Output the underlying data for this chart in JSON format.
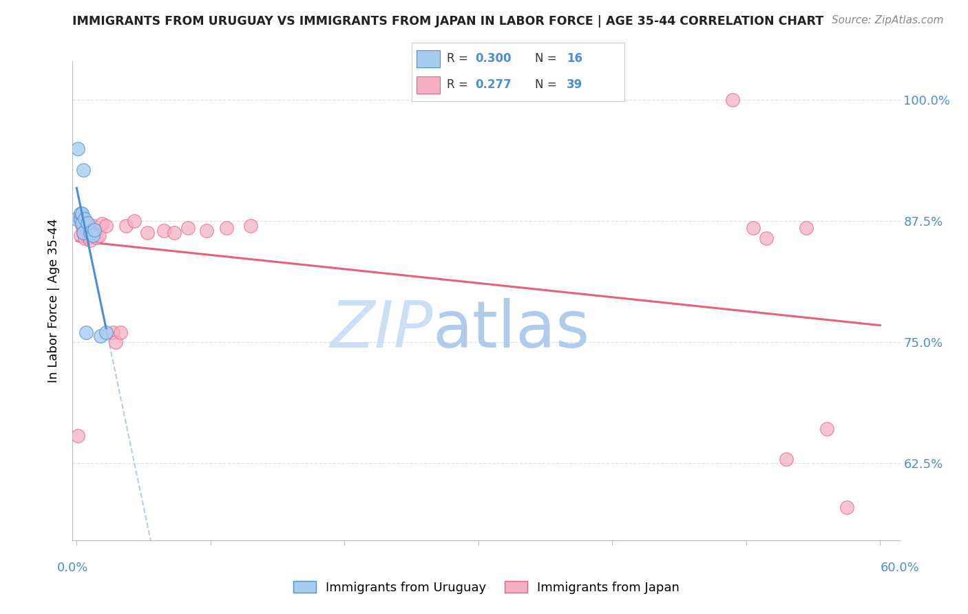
{
  "title": "IMMIGRANTS FROM URUGUAY VS IMMIGRANTS FROM JAPAN IN LABOR FORCE | AGE 35-44 CORRELATION CHART",
  "source": "Source: ZipAtlas.com",
  "ylabel": "In Labor Force | Age 35-44",
  "ytick_vals": [
    0.625,
    0.75,
    0.875,
    1.0
  ],
  "ytick_labels": [
    "62.5%",
    "75.0%",
    "87.5%",
    "100.0%"
  ],
  "xlim": [
    -0.003,
    0.615
  ],
  "ylim": [
    0.545,
    1.04
  ],
  "r_uruguay": 0.3,
  "n_uruguay": 16,
  "r_japan": 0.277,
  "n_japan": 39,
  "color_uruguay": "#a8ccf0",
  "color_japan": "#f5b0c5",
  "trendline_color_uruguay": "#4a8fd4",
  "trendline_color_japan": "#e8607a",
  "trendline_dash_color": "#b8cce4",
  "watermark_zip_color": "#cce0f5",
  "watermark_atlas_color": "#b0ccec",
  "background_color": "#ffffff",
  "grid_color": "#e0e0e0",
  "axis_label_color": "#4a8fd4",
  "title_color": "#222222",
  "source_color": "#888888",
  "legend_text_color": "#333333",
  "uruguay_x": [
    0.0,
    0.001,
    0.003,
    0.003,
    0.004,
    0.004,
    0.005,
    0.005,
    0.006,
    0.007,
    0.008,
    0.01,
    0.012,
    0.013,
    0.018,
    0.022
  ],
  "uruguay_y": [
    0.877,
    0.95,
    0.877,
    0.883,
    0.873,
    0.883,
    0.863,
    0.928,
    0.877,
    0.76,
    0.873,
    0.863,
    0.86,
    0.866,
    0.756,
    0.76
  ],
  "japan_x": [
    0.001,
    0.002,
    0.003,
    0.004,
    0.004,
    0.005,
    0.005,
    0.006,
    0.007,
    0.008,
    0.009,
    0.01,
    0.01,
    0.011,
    0.012,
    0.013,
    0.015,
    0.017,
    0.019,
    0.022,
    0.027,
    0.029,
    0.033,
    0.037,
    0.043,
    0.053,
    0.065,
    0.073,
    0.083,
    0.097,
    0.112,
    0.13,
    0.49,
    0.505,
    0.515,
    0.53,
    0.545,
    0.56,
    0.575
  ],
  "japan_y": [
    0.653,
    0.877,
    0.86,
    0.87,
    0.88,
    0.863,
    0.868,
    0.857,
    0.868,
    0.87,
    0.858,
    0.855,
    0.865,
    0.868,
    0.87,
    0.863,
    0.858,
    0.86,
    0.872,
    0.87,
    0.76,
    0.75,
    0.76,
    0.87,
    0.875,
    0.863,
    0.865,
    0.863,
    0.868,
    0.865,
    0.868,
    0.87,
    1.0,
    0.868,
    0.857,
    0.629,
    0.868,
    0.66,
    0.579
  ],
  "xtick_positions": [
    0.0,
    0.1,
    0.2,
    0.3,
    0.4,
    0.5,
    0.6
  ]
}
